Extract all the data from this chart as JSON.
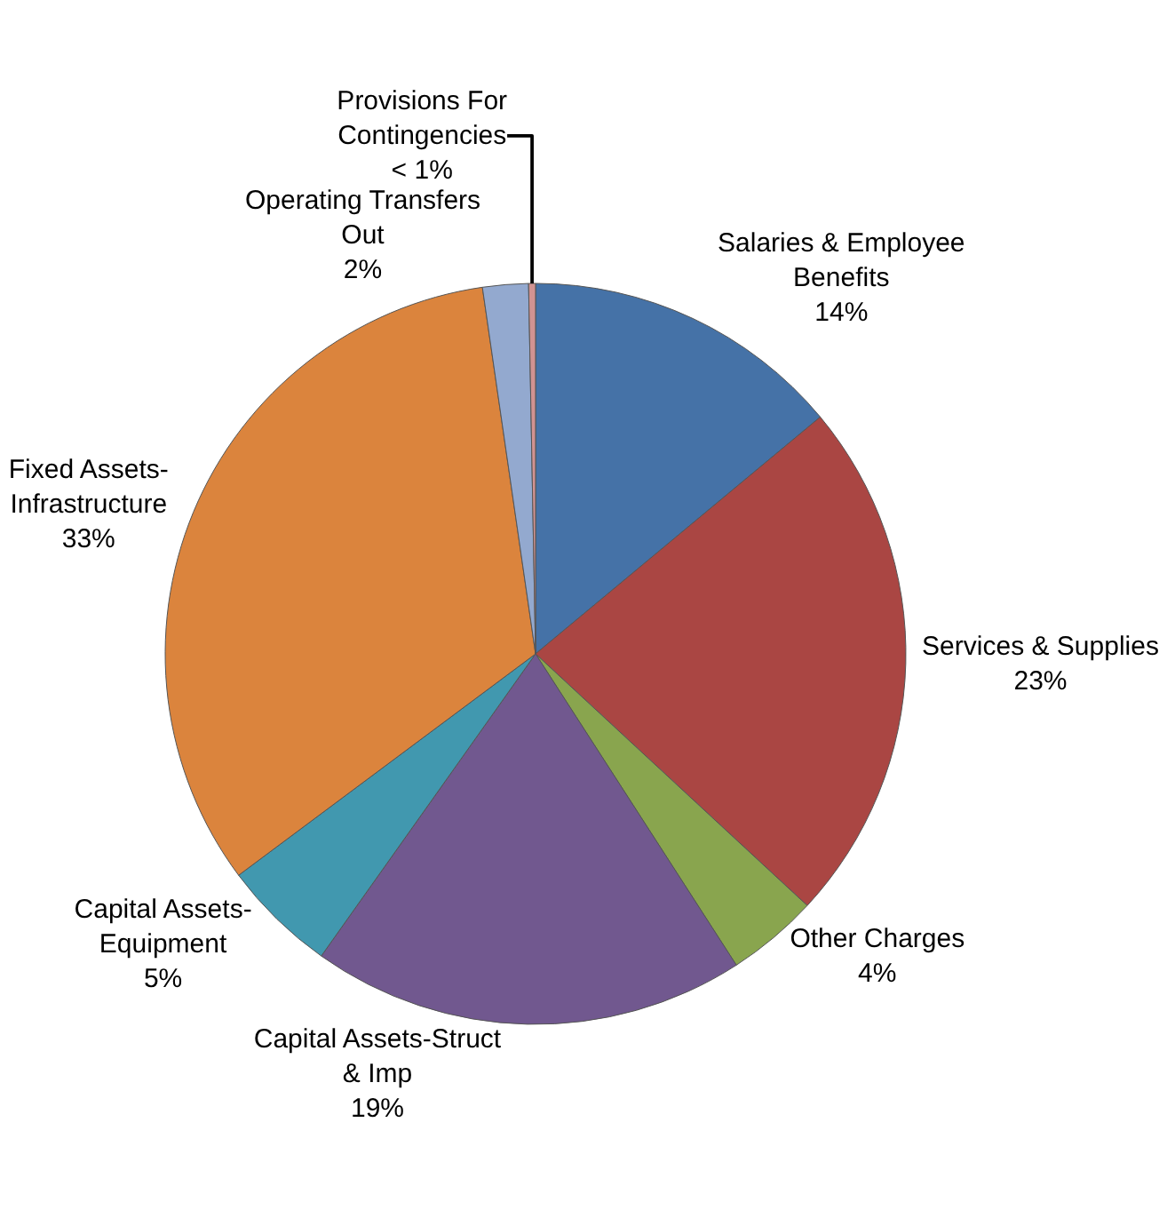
{
  "chart_data": {
    "type": "pie",
    "categories": [
      "Salaries & Employee Benefits",
      "Services & Supplies",
      "Other Charges",
      "Capital Assets-Struct & Imp",
      "Capital Assets-Equipment",
      "Fixed Assets-Infrastructure",
      "Operating Transfers Out",
      "Provisions For Contingencies"
    ],
    "values": [
      14,
      23,
      4,
      19,
      5,
      33,
      2,
      0.3
    ],
    "value_labels": [
      "14%",
      "23%",
      "4%",
      "19%",
      "5%",
      "33%",
      "2%",
      "< 1%"
    ],
    "colors": [
      "#4572a7",
      "#aa4643",
      "#89a54e",
      "#71588f",
      "#4198af",
      "#db843d",
      "#93a9cf",
      "#d19392"
    ],
    "legend": false
  }
}
